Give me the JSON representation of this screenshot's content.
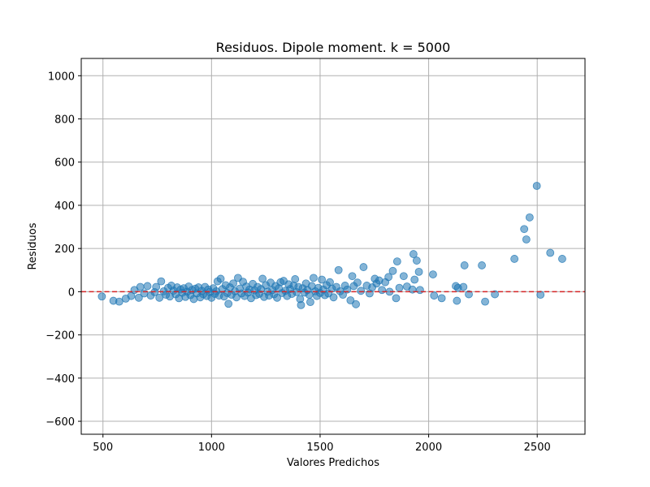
{
  "chart_data": {
    "type": "scatter",
    "title": "Residuos. Dipole moment. k = 5000",
    "xlabel": "Valores Predichos",
    "ylabel": "Residuos",
    "xlim": [
      400,
      2720
    ],
    "ylim": [
      -660,
      1080
    ],
    "xticks": [
      500,
      1000,
      1500,
      2000,
      2500
    ],
    "yticks": [
      -600,
      -400,
      -200,
      0,
      200,
      400,
      600,
      800,
      1000
    ],
    "grid": true,
    "reference_line": {
      "y": 0,
      "style": "dashed",
      "color": "#d62728"
    },
    "point_color": "#1f77b4",
    "point_alpha": 0.55,
    "points": [
      [
        495,
        -22
      ],
      [
        548,
        -42
      ],
      [
        575,
        -46
      ],
      [
        605,
        -32
      ],
      [
        630,
        -20
      ],
      [
        645,
        8
      ],
      [
        665,
        -28
      ],
      [
        672,
        22
      ],
      [
        690,
        -8
      ],
      [
        705,
        26
      ],
      [
        720,
        -18
      ],
      [
        738,
        -2
      ],
      [
        745,
        22
      ],
      [
        760,
        -28
      ],
      [
        768,
        48
      ],
      [
        780,
        2
      ],
      [
        790,
        -14
      ],
      [
        800,
        18
      ],
      [
        808,
        -22
      ],
      [
        815,
        28
      ],
      [
        825,
        5
      ],
      [
        835,
        -12
      ],
      [
        842,
        20
      ],
      [
        850,
        -30
      ],
      [
        858,
        10
      ],
      [
        865,
        -5
      ],
      [
        872,
        16
      ],
      [
        880,
        -24
      ],
      [
        888,
        0
      ],
      [
        895,
        24
      ],
      [
        903,
        -16
      ],
      [
        910,
        8
      ],
      [
        918,
        -34
      ],
      [
        925,
        14
      ],
      [
        932,
        -8
      ],
      [
        940,
        20
      ],
      [
        948,
        -26
      ],
      [
        955,
        4
      ],
      [
        962,
        -12
      ],
      [
        970,
        22
      ],
      [
        978,
        -20
      ],
      [
        985,
        10
      ],
      [
        992,
        -2
      ],
      [
        1000,
        -28
      ],
      [
        1008,
        16
      ],
      [
        1015,
        -10
      ],
      [
        1022,
        2
      ],
      [
        1028,
        48
      ],
      [
        1035,
        -18
      ],
      [
        1042,
        60
      ],
      [
        1050,
        12
      ],
      [
        1058,
        -22
      ],
      [
        1065,
        30
      ],
      [
        1072,
        -6
      ],
      [
        1078,
        -56
      ],
      [
        1085,
        20
      ],
      [
        1092,
        -14
      ],
      [
        1100,
        38
      ],
      [
        1108,
        2
      ],
      [
        1115,
        -26
      ],
      [
        1122,
        64
      ],
      [
        1130,
        14
      ],
      [
        1138,
        -8
      ],
      [
        1145,
        46
      ],
      [
        1152,
        -20
      ],
      [
        1160,
        24
      ],
      [
        1168,
        -4
      ],
      [
        1175,
        10
      ],
      [
        1182,
        -30
      ],
      [
        1190,
        36
      ],
      [
        1198,
        6
      ],
      [
        1205,
        -16
      ],
      [
        1212,
        22
      ],
      [
        1220,
        -10
      ],
      [
        1228,
        12
      ],
      [
        1235,
        60
      ],
      [
        1242,
        -24
      ],
      [
        1250,
        30
      ],
      [
        1258,
        0
      ],
      [
        1265,
        -18
      ],
      [
        1272,
        42
      ],
      [
        1280,
        8
      ],
      [
        1288,
        -12
      ],
      [
        1295,
        26
      ],
      [
        1302,
        -28
      ],
      [
        1310,
        16
      ],
      [
        1318,
        44
      ],
      [
        1325,
        -6
      ],
      [
        1332,
        50
      ],
      [
        1340,
        4
      ],
      [
        1348,
        -20
      ],
      [
        1355,
        34
      ],
      [
        1362,
        12
      ],
      [
        1370,
        -10
      ],
      [
        1378,
        28
      ],
      [
        1385,
        58
      ],
      [
        1392,
        -2
      ],
      [
        1400,
        22
      ],
      [
        1408,
        -34
      ],
      [
        1412,
        -62
      ],
      [
        1420,
        16
      ],
      [
        1428,
        -4
      ],
      [
        1435,
        38
      ],
      [
        1442,
        8
      ],
      [
        1450,
        -14
      ],
      [
        1455,
        -48
      ],
      [
        1462,
        26
      ],
      [
        1470,
        64
      ],
      [
        1478,
        2
      ],
      [
        1485,
        -20
      ],
      [
        1492,
        18
      ],
      [
        1500,
        -6
      ],
      [
        1508,
        56
      ],
      [
        1515,
        10
      ],
      [
        1522,
        -16
      ],
      [
        1530,
        30
      ],
      [
        1538,
        -8
      ],
      [
        1545,
        44
      ],
      [
        1555,
        14
      ],
      [
        1562,
        -26
      ],
      [
        1575,
        22
      ],
      [
        1585,
        100
      ],
      [
        1592,
        2
      ],
      [
        1605,
        -14
      ],
      [
        1615,
        28
      ],
      [
        1625,
        10
      ],
      [
        1640,
        -40
      ],
      [
        1648,
        72
      ],
      [
        1655,
        26
      ],
      [
        1665,
        -58
      ],
      [
        1672,
        42
      ],
      [
        1688,
        4
      ],
      [
        1700,
        114
      ],
      [
        1715,
        28
      ],
      [
        1728,
        -8
      ],
      [
        1740,
        20
      ],
      [
        1752,
        60
      ],
      [
        1760,
        38
      ],
      [
        1772,
        52
      ],
      [
        1785,
        8
      ],
      [
        1800,
        44
      ],
      [
        1815,
        68
      ],
      [
        1820,
        0
      ],
      [
        1835,
        96
      ],
      [
        1850,
        -30
      ],
      [
        1855,
        140
      ],
      [
        1865,
        18
      ],
      [
        1885,
        72
      ],
      [
        1900,
        24
      ],
      [
        1925,
        10
      ],
      [
        1930,
        174
      ],
      [
        1935,
        56
      ],
      [
        1945,
        144
      ],
      [
        1955,
        92
      ],
      [
        1960,
        8
      ],
      [
        2020,
        80
      ],
      [
        2025,
        -18
      ],
      [
        2060,
        -30
      ],
      [
        2125,
        26
      ],
      [
        2130,
        -42
      ],
      [
        2135,
        18
      ],
      [
        2160,
        22
      ],
      [
        2165,
        122
      ],
      [
        2185,
        -12
      ],
      [
        2245,
        122
      ],
      [
        2260,
        -46
      ],
      [
        2305,
        -12
      ],
      [
        2395,
        152
      ],
      [
        2440,
        290
      ],
      [
        2450,
        242
      ],
      [
        2465,
        344
      ],
      [
        2498,
        490
      ],
      [
        2515,
        -14
      ],
      [
        2560,
        180
      ],
      [
        2615,
        152
      ]
    ]
  }
}
